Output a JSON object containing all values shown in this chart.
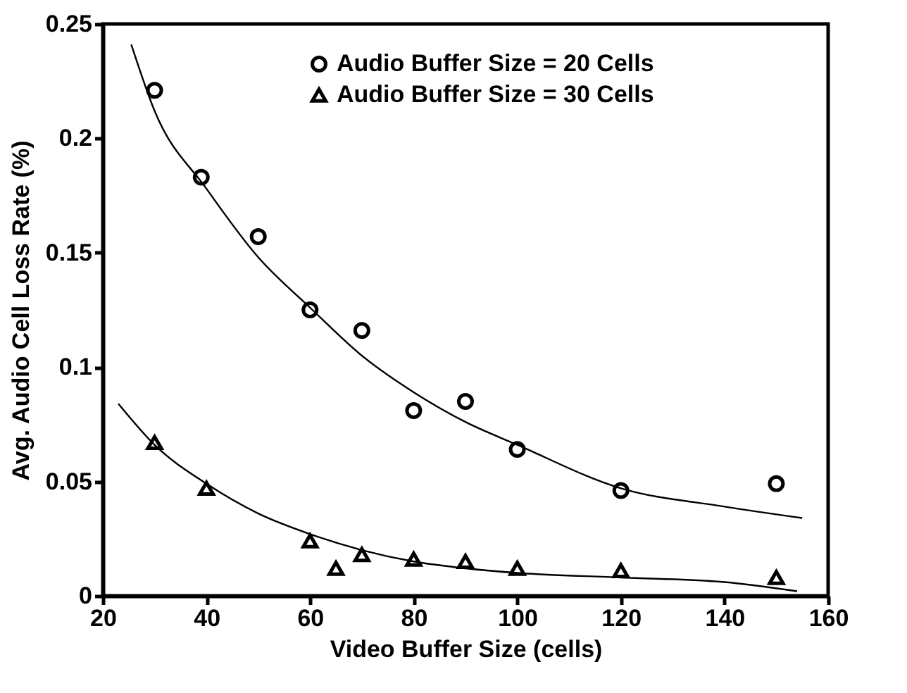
{
  "chart_data": {
    "type": "scatter",
    "xlabel": "Video Buffer Size (cells)",
    "ylabel": "Avg. Audio Cell Loss Rate (%)",
    "xlim": [
      20,
      160
    ],
    "xticks": [
      20,
      40,
      60,
      80,
      100,
      120,
      140,
      160
    ],
    "ylim": [
      0,
      0.25
    ],
    "yticks": [
      0,
      0.05,
      0.1,
      0.15,
      0.2,
      0.25
    ],
    "grid": false,
    "legend": "top",
    "series": [
      {
        "name": "Audio Buffer Size = 20 Cells",
        "color": "#000000",
        "marker": "circle",
        "x": [
          30,
          39,
          50,
          60,
          70,
          80,
          90,
          100,
          120,
          150
        ],
        "values": [
          0.221,
          0.183,
          0.157,
          0.125,
          0.116,
          0.081,
          0.085,
          0.064,
          0.046,
          0.049
        ]
      },
      {
        "name": "Audio Buffer Size = 30 Cells",
        "color": "#000000",
        "marker": "triangle",
        "x": [
          30,
          40,
          60,
          65,
          70,
          80,
          90,
          100,
          120,
          150
        ],
        "values": [
          0.067,
          0.047,
          0.024,
          0.012,
          0.018,
          0.016,
          0.015,
          0.012,
          0.011,
          0.008
        ]
      },
      {
        "type": "line",
        "color": "#000000",
        "marker": "none",
        "x": [
          25.5,
          30,
          40,
          50,
          60,
          70,
          80,
          90,
          100,
          120,
          140,
          155
        ],
        "values": [
          0.241,
          0.212,
          0.178,
          0.148,
          0.126,
          0.105,
          0.089,
          0.076,
          0.066,
          0.047,
          0.039,
          0.034
        ]
      },
      {
        "type": "line",
        "color": "#000000",
        "marker": "none",
        "x": [
          23,
          30,
          40,
          50,
          60,
          70,
          80,
          90,
          100,
          120,
          140,
          154
        ],
        "values": [
          0.084,
          0.066,
          0.049,
          0.036,
          0.027,
          0.02,
          0.015,
          0.012,
          0.01,
          0.008,
          0.006,
          0.002
        ]
      }
    ]
  }
}
